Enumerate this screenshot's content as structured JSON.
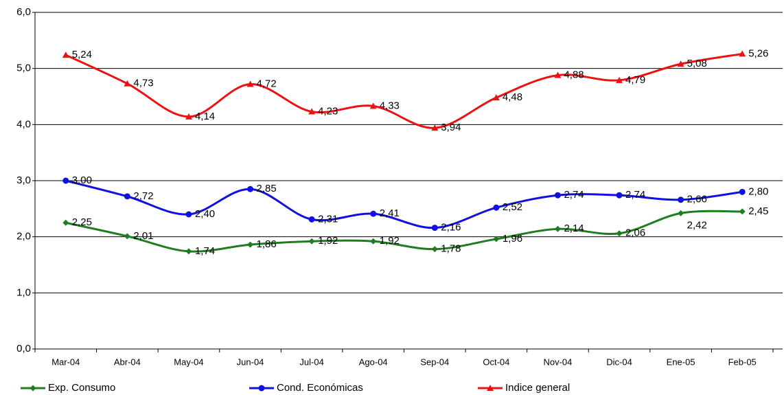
{
  "chart_data": {
    "type": "line",
    "categories": [
      "Mar-04",
      "Abr-04",
      "May-04",
      "Jun-04",
      "Jul-04",
      "Ago-04",
      "Sep-04",
      "Oct-04",
      "Nov-04",
      "Dic-04",
      "Ene-05",
      "Feb-05"
    ],
    "series": [
      {
        "name": "Exp. Consumo",
        "color": "#1e7d1e",
        "marker": "diamond",
        "values": [
          2.25,
          2.01,
          1.74,
          1.86,
          1.92,
          1.92,
          1.78,
          1.96,
          2.14,
          2.06,
          2.42,
          2.45
        ],
        "value_labels": [
          "2,25",
          "2,01",
          "1,74",
          "1,86",
          "1,92",
          "1,92",
          "1,78",
          "1,96",
          "2,14",
          "2,06",
          "2,42",
          "2,45"
        ]
      },
      {
        "name": "Cond. Económicas",
        "color": "#1010e0",
        "marker": "circle",
        "values": [
          3.0,
          2.72,
          2.4,
          2.85,
          2.31,
          2.41,
          2.16,
          2.52,
          2.74,
          2.74,
          2.66,
          2.8
        ],
        "value_labels": [
          "3,00",
          "2,72",
          "2,40",
          "2,85",
          "2,31",
          "2,41",
          "2,16",
          "2,52",
          "2,74",
          "2,74",
          "2,66",
          "2,80"
        ]
      },
      {
        "name": "Indice general",
        "color": "#ee1111",
        "marker": "triangle",
        "values": [
          5.24,
          4.73,
          4.14,
          4.72,
          4.23,
          4.33,
          3.94,
          4.48,
          4.88,
          4.79,
          5.08,
          5.26
        ],
        "value_labels": [
          "5,24",
          "4,73",
          "4,14",
          "4,72",
          "4,23",
          "4,33",
          "3,94",
          "4,48",
          "4,88",
          "4,79",
          "5,08",
          "5,26"
        ]
      }
    ],
    "ylim": [
      0,
      6
    ],
    "yticks": [
      {
        "value": 0,
        "label": "0,0"
      },
      {
        "value": 1,
        "label": "1,0"
      },
      {
        "value": 2,
        "label": "2,0"
      },
      {
        "value": 3,
        "label": "3,0"
      },
      {
        "value": 4,
        "label": "4,0"
      },
      {
        "value": 5,
        "label": "5,0"
      },
      {
        "value": 6,
        "label": "6,0"
      }
    ],
    "grid": true,
    "smooth": true,
    "legend": "bottom"
  }
}
